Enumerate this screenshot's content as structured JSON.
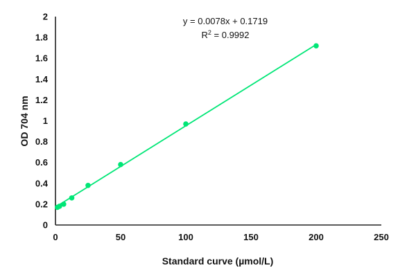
{
  "chart_data": {
    "type": "scatter",
    "xlabel": "Standard curve (µmol/L)",
    "ylabel": "OD 704 nm",
    "xlim": [
      0,
      250
    ],
    "ylim": [
      0,
      2
    ],
    "x_ticks": [
      0,
      50,
      100,
      150,
      200,
      250
    ],
    "y_ticks": [
      0,
      0.2,
      0.4,
      0.6,
      0.8,
      1,
      1.2,
      1.4,
      1.6,
      1.8,
      2
    ],
    "x_tick_labels": [
      "0",
      "50",
      "100",
      "150",
      "200",
      "250"
    ],
    "y_tick_labels": [
      "0",
      "0.2",
      "0.4",
      "0.6",
      "0.8",
      "1",
      "1.2",
      "1.4",
      "1.6",
      "1.8",
      "2"
    ],
    "grid": false,
    "series": [
      {
        "x": [
          1.5,
          3.1,
          6.3,
          12.5,
          25,
          50,
          100,
          200
        ],
        "y": [
          0.17,
          0.18,
          0.2,
          0.26,
          0.38,
          0.58,
          0.97,
          1.72
        ]
      }
    ],
    "trendline": {
      "slope": 0.0078,
      "intercept": 0.1719,
      "x_range": [
        0,
        200
      ]
    },
    "equation": "y = 0.0078x + 0.1719",
    "r_squared_label": "R",
    "r_squared_exp": "2",
    "r_squared_value": " = 0.9992",
    "colors": {
      "marker": "#00e676",
      "line": "#00e676",
      "axis": "#222222"
    }
  }
}
